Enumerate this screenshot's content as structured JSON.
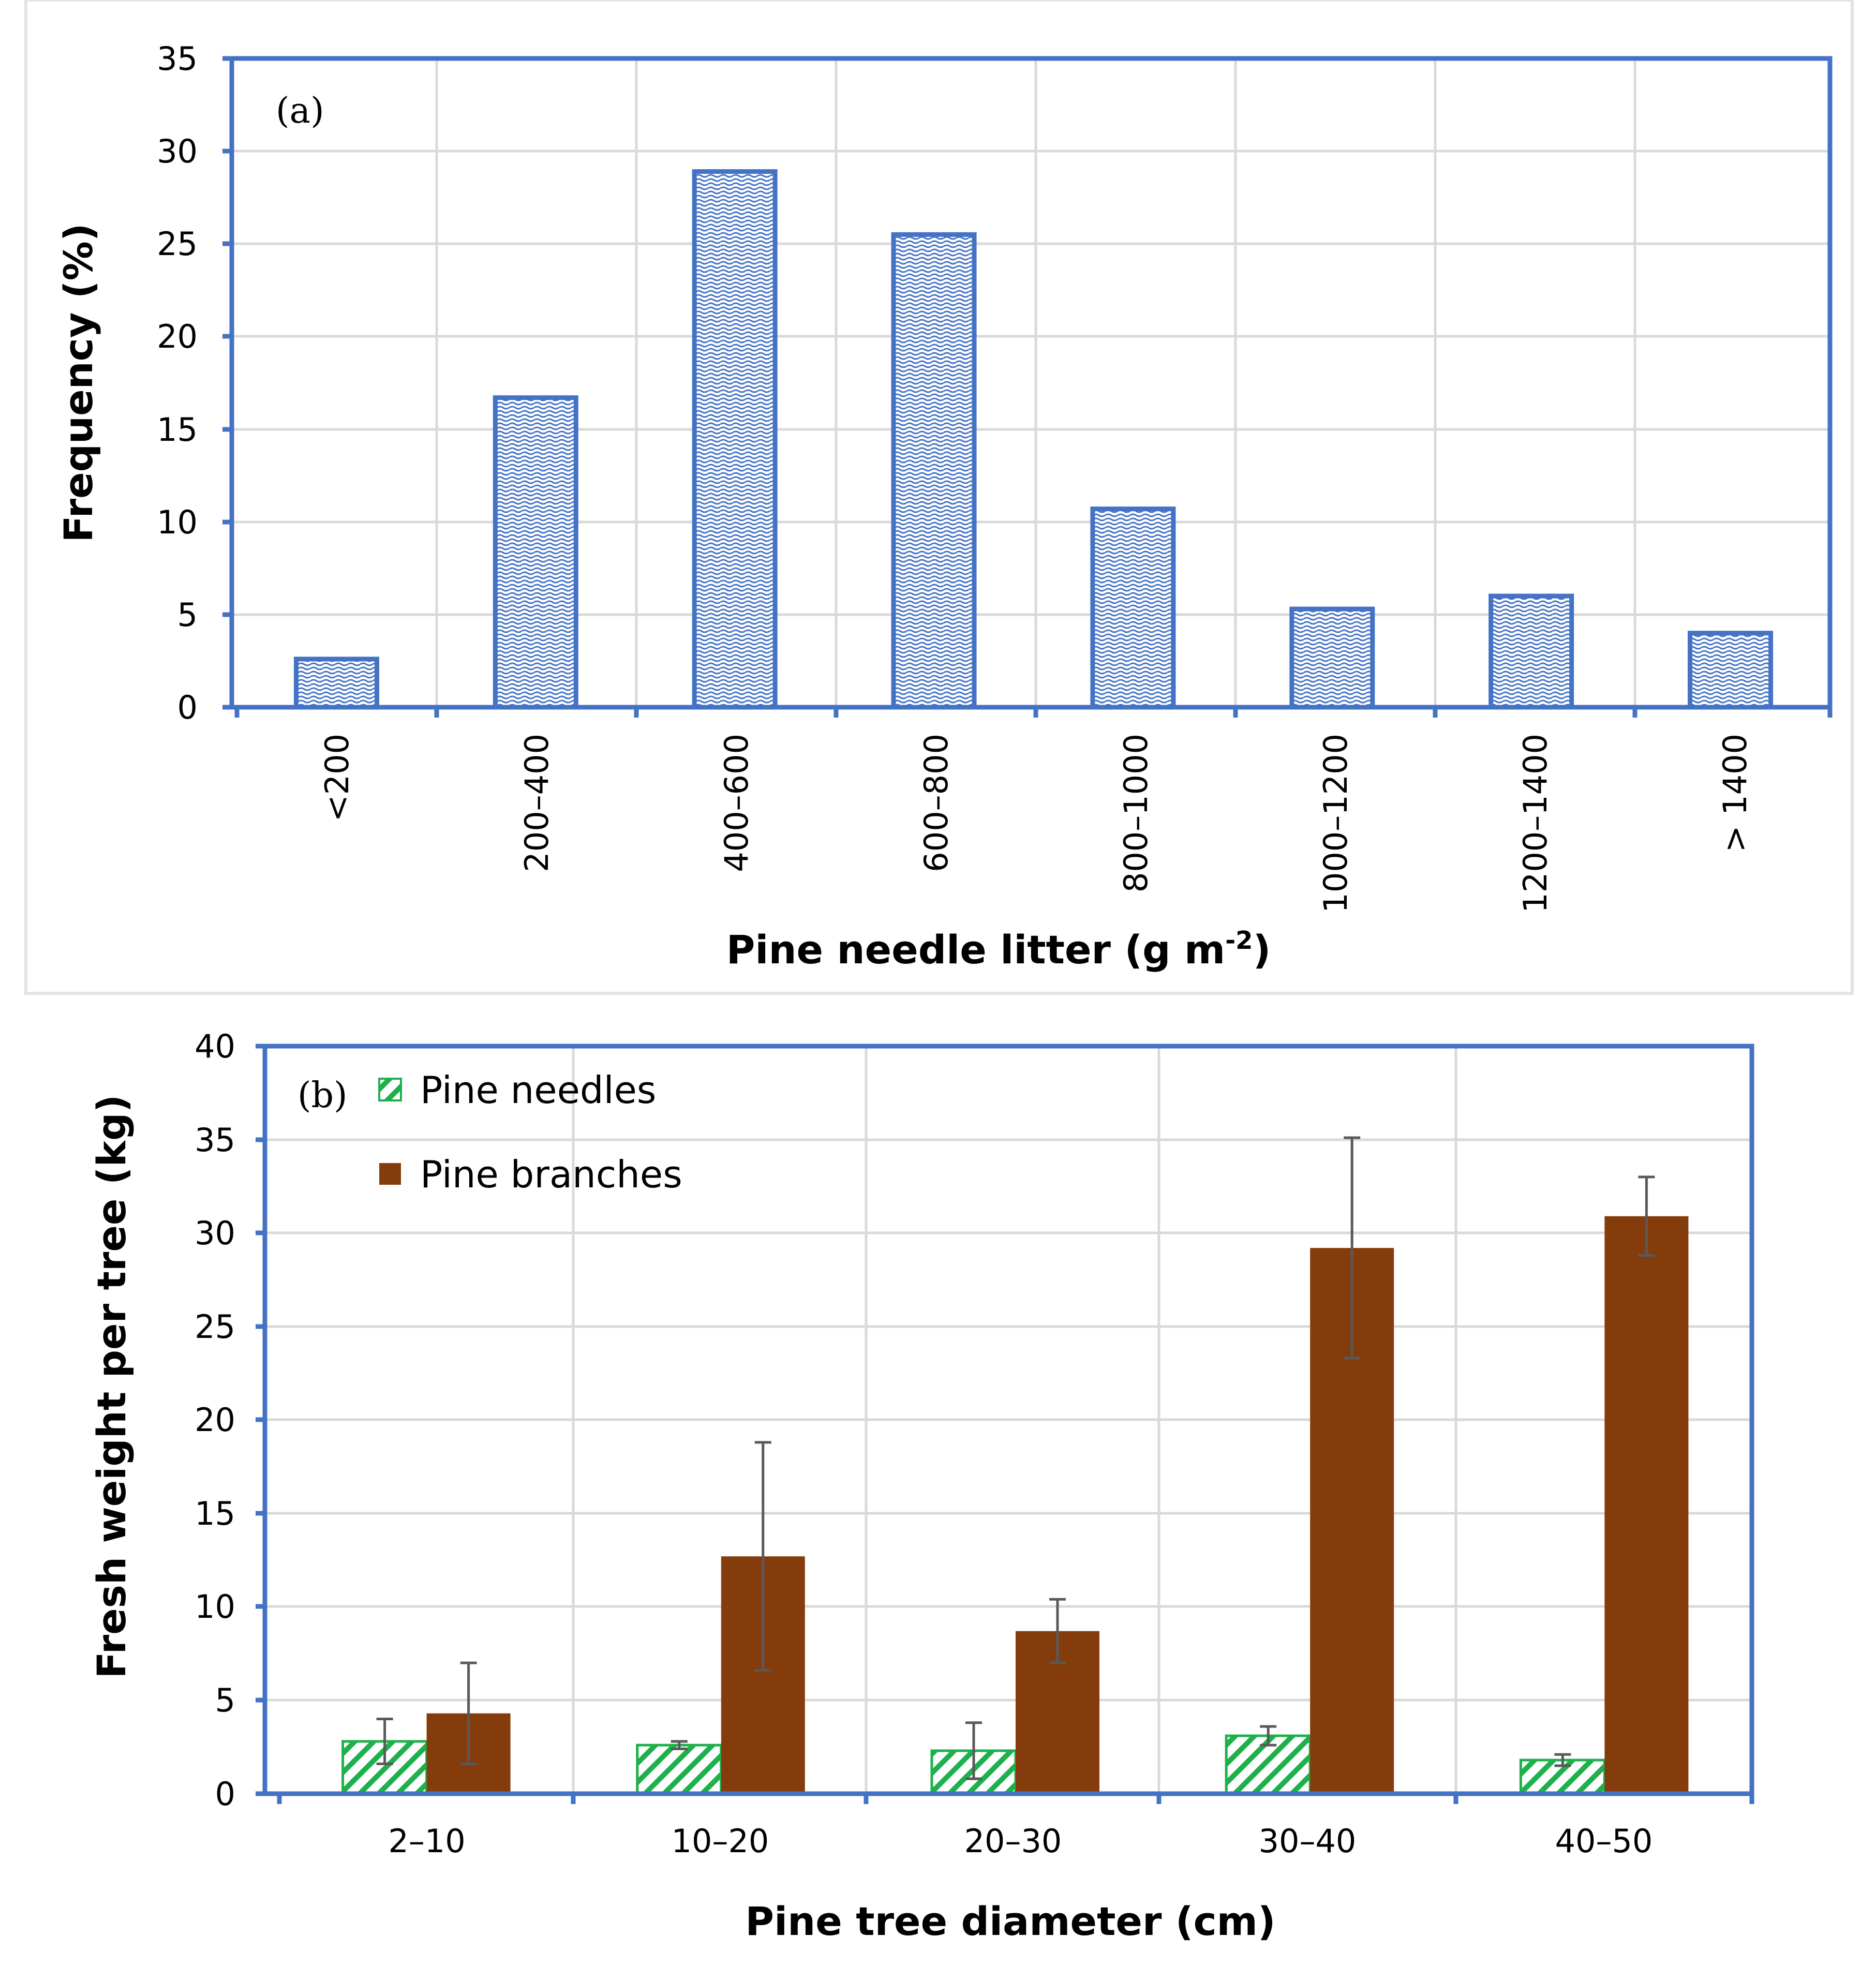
{
  "chart_data": [
    {
      "id": "a",
      "type": "bar",
      "panel_label": "(a)",
      "xlabel": "Pine needle litter (g m",
      "xlabel_sup": "-2",
      "xlabel_close": ")",
      "ylabel": "Frequency (%)",
      "ylim": [
        0,
        35
      ],
      "yticks": [
        "0",
        "5",
        "10",
        "15",
        "20",
        "25",
        "30",
        "35"
      ],
      "grid": true,
      "categories": [
        "<200",
        "200–400",
        "400–600",
        "600–800",
        "800–1000",
        "1000–1200",
        "1200–1400",
        "> 1400"
      ],
      "values": [
        2.6,
        16.7,
        28.9,
        25.5,
        10.7,
        5.3,
        6.0,
        4.0
      ],
      "colors": {
        "frame": "#4472C4",
        "bar_outline": "#4472C4",
        "bar_pattern": "#4472C4"
      }
    },
    {
      "id": "b",
      "type": "bar",
      "panel_label": "(b)",
      "xlabel": "Pine tree diameter (cm)",
      "ylabel": "Fresh weight per tree (kg)",
      "ylim": [
        0,
        40
      ],
      "yticks": [
        "0",
        "5",
        "10",
        "15",
        "20",
        "25",
        "30",
        "35",
        "40"
      ],
      "grid": true,
      "legend_position": "top-left",
      "categories": [
        "2–10",
        "10–20",
        "20–30",
        "30–40",
        "40–50"
      ],
      "series": [
        {
          "name": "Pine needles",
          "values": [
            2.8,
            2.6,
            2.3,
            3.1,
            1.8
          ],
          "errors": [
            1.2,
            0.2,
            1.5,
            0.5,
            0.3
          ],
          "color": "#1EB04B"
        },
        {
          "name": "Pine branches",
          "values": [
            4.3,
            12.7,
            8.7,
            29.2,
            30.9
          ],
          "errors": [
            2.7,
            6.1,
            1.7,
            5.9,
            2.1
          ],
          "color": "#843C0C"
        }
      ],
      "colors": {
        "frame": "#4472C4",
        "error_bar": "#595959"
      }
    }
  ]
}
